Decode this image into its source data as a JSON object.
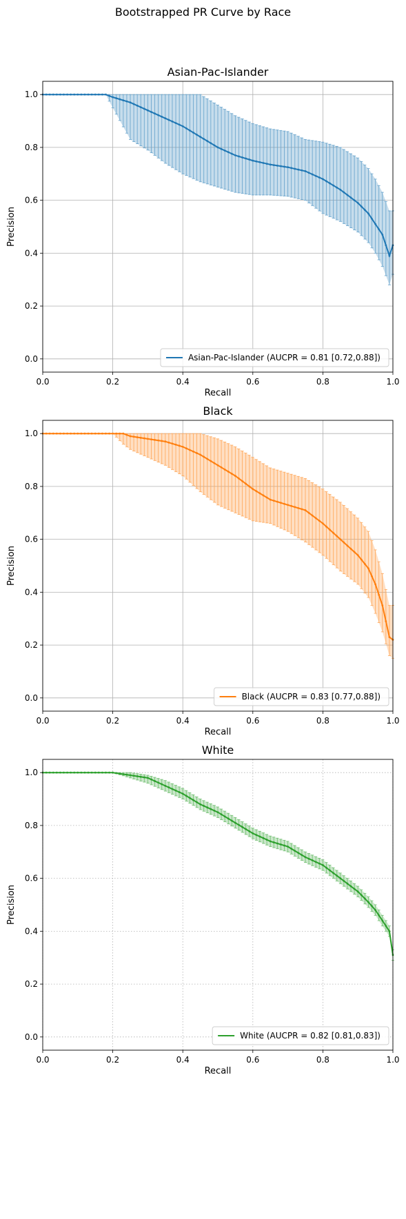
{
  "figure_title": "Bootstrapped PR Curve by Race",
  "chart_data": [
    {
      "type": "line",
      "title": "Asian-Pac-Islander",
      "xlabel": "Recall",
      "ylabel": "Precision",
      "xlim": [
        0,
        1
      ],
      "ylim": [
        -0.05,
        1.05
      ],
      "xticks": [
        "0.0",
        "0.2",
        "0.4",
        "0.6",
        "0.8",
        "1.0"
      ],
      "yticks": [
        "0.0",
        "0.2",
        "0.4",
        "0.6",
        "0.8",
        "1.0"
      ],
      "grid": "solid",
      "legend_position": "lower right",
      "color": "#1f77b4",
      "series": [
        {
          "name": "Asian-Pac-Islander (AUCPR = 0.81 [0.72,0.88])",
          "x": [
            0.0,
            0.05,
            0.1,
            0.15,
            0.18,
            0.2,
            0.25,
            0.3,
            0.35,
            0.4,
            0.45,
            0.5,
            0.55,
            0.6,
            0.65,
            0.7,
            0.75,
            0.8,
            0.85,
            0.9,
            0.93,
            0.95,
            0.97,
            0.99,
            1.0
          ],
          "y": [
            1.0,
            1.0,
            1.0,
            1.0,
            1.0,
            0.99,
            0.97,
            0.94,
            0.91,
            0.88,
            0.84,
            0.8,
            0.77,
            0.75,
            0.735,
            0.725,
            0.71,
            0.68,
            0.64,
            0.59,
            0.55,
            0.51,
            0.47,
            0.39,
            0.43
          ],
          "lower": [
            1.0,
            1.0,
            1.0,
            1.0,
            1.0,
            0.95,
            0.83,
            0.79,
            0.74,
            0.7,
            0.67,
            0.65,
            0.63,
            0.62,
            0.62,
            0.615,
            0.6,
            0.55,
            0.52,
            0.48,
            0.44,
            0.4,
            0.35,
            0.28,
            0.32
          ],
          "upper": [
            1.0,
            1.0,
            1.0,
            1.0,
            1.0,
            1.0,
            1.0,
            1.0,
            1.0,
            1.0,
            1.0,
            0.96,
            0.92,
            0.89,
            0.87,
            0.86,
            0.83,
            0.82,
            0.8,
            0.76,
            0.72,
            0.68,
            0.63,
            0.56,
            0.56
          ]
        }
      ]
    },
    {
      "type": "line",
      "title": "Black",
      "xlabel": "Recall",
      "ylabel": "Precision",
      "xlim": [
        0,
        1
      ],
      "ylim": [
        -0.05,
        1.05
      ],
      "xticks": [
        "0.0",
        "0.2",
        "0.4",
        "0.6",
        "0.8",
        "1.0"
      ],
      "yticks": [
        "0.0",
        "0.2",
        "0.4",
        "0.6",
        "0.8",
        "1.0"
      ],
      "grid": "solid",
      "legend_position": "lower right",
      "color": "#ff7f0e",
      "series": [
        {
          "name": "Black (AUCPR = 0.83 [0.77,0.88])",
          "x": [
            0.0,
            0.05,
            0.1,
            0.15,
            0.2,
            0.23,
            0.25,
            0.3,
            0.35,
            0.4,
            0.45,
            0.5,
            0.55,
            0.6,
            0.65,
            0.7,
            0.75,
            0.8,
            0.85,
            0.9,
            0.93,
            0.95,
            0.97,
            0.99,
            1.0
          ],
          "y": [
            1.0,
            1.0,
            1.0,
            1.0,
            1.0,
            1.0,
            0.99,
            0.98,
            0.97,
            0.95,
            0.92,
            0.88,
            0.84,
            0.79,
            0.75,
            0.73,
            0.71,
            0.66,
            0.6,
            0.54,
            0.49,
            0.43,
            0.35,
            0.23,
            0.22
          ],
          "lower": [
            1.0,
            1.0,
            1.0,
            1.0,
            1.0,
            0.96,
            0.94,
            0.91,
            0.88,
            0.84,
            0.78,
            0.73,
            0.7,
            0.67,
            0.66,
            0.63,
            0.59,
            0.54,
            0.48,
            0.43,
            0.38,
            0.32,
            0.25,
            0.16,
            0.15
          ],
          "upper": [
            1.0,
            1.0,
            1.0,
            1.0,
            1.0,
            1.0,
            1.0,
            1.0,
            1.0,
            1.0,
            1.0,
            0.98,
            0.95,
            0.91,
            0.87,
            0.85,
            0.83,
            0.79,
            0.74,
            0.68,
            0.63,
            0.56,
            0.47,
            0.35,
            0.35
          ]
        }
      ]
    },
    {
      "type": "line",
      "title": "White",
      "xlabel": "Recall",
      "ylabel": "Precision",
      "xlim": [
        0,
        1
      ],
      "ylim": [
        -0.05,
        1.05
      ],
      "xticks": [
        "0.0",
        "0.2",
        "0.4",
        "0.6",
        "0.8",
        "1.0"
      ],
      "yticks": [
        "0.0",
        "0.2",
        "0.4",
        "0.6",
        "0.8",
        "1.0"
      ],
      "grid": "dotted",
      "legend_position": "lower right",
      "color": "#2ca02c",
      "series": [
        {
          "name": "White (AUCPR = 0.82 [0.81,0.83])",
          "x": [
            0.0,
            0.05,
            0.1,
            0.15,
            0.2,
            0.25,
            0.3,
            0.35,
            0.4,
            0.45,
            0.5,
            0.55,
            0.6,
            0.65,
            0.7,
            0.75,
            0.8,
            0.85,
            0.9,
            0.93,
            0.95,
            0.97,
            0.99,
            1.0
          ],
          "y": [
            1.0,
            1.0,
            1.0,
            1.0,
            1.0,
            0.99,
            0.98,
            0.95,
            0.92,
            0.88,
            0.85,
            0.81,
            0.77,
            0.74,
            0.72,
            0.68,
            0.65,
            0.6,
            0.55,
            0.51,
            0.48,
            0.44,
            0.4,
            0.31
          ],
          "lower": [
            1.0,
            1.0,
            1.0,
            1.0,
            1.0,
            0.98,
            0.96,
            0.93,
            0.9,
            0.86,
            0.83,
            0.79,
            0.75,
            0.72,
            0.7,
            0.66,
            0.63,
            0.58,
            0.53,
            0.49,
            0.46,
            0.42,
            0.38,
            0.29
          ],
          "upper": [
            1.0,
            1.0,
            1.0,
            1.0,
            1.0,
            1.0,
            0.99,
            0.97,
            0.94,
            0.9,
            0.87,
            0.83,
            0.79,
            0.76,
            0.74,
            0.7,
            0.67,
            0.62,
            0.57,
            0.53,
            0.5,
            0.46,
            0.42,
            0.33
          ]
        }
      ]
    }
  ]
}
